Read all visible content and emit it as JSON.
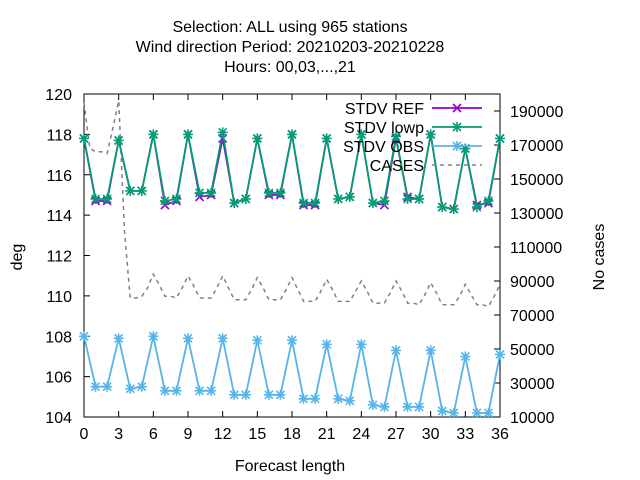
{
  "chart_data": {
    "type": "line",
    "title": [
      "Selection: ALL using   965 stations",
      "Wind direction   Period: 20210203-20210228",
      "Hours:  00,03,...,21"
    ],
    "xlabel": "Forecast length",
    "ylabel": "deg",
    "y2label": "No cases",
    "xlim": [
      0,
      36
    ],
    "ylim": [
      104,
      120
    ],
    "y2lim": [
      10000,
      200000
    ],
    "xticks": [
      0,
      3,
      6,
      9,
      12,
      15,
      18,
      21,
      24,
      27,
      30,
      33,
      36
    ],
    "yticks": [
      104,
      106,
      108,
      110,
      112,
      114,
      116,
      118,
      120
    ],
    "y2ticks": [
      10000,
      30000,
      50000,
      70000,
      90000,
      110000,
      130000,
      150000,
      170000,
      190000
    ],
    "grid": false,
    "legend_position": "top-right",
    "series": [
      {
        "name": "STDV REF",
        "axis": "y",
        "color": "#9400d3",
        "marker": "cross",
        "x": [
          0,
          1,
          2,
          3,
          4,
          5,
          6,
          7,
          8,
          9,
          10,
          11,
          12,
          13,
          14,
          15,
          16,
          17,
          18,
          19,
          20,
          21,
          22,
          23,
          24,
          25,
          26,
          27,
          28,
          29,
          30,
          31,
          32,
          33,
          34,
          35,
          36
        ],
        "values": [
          117.8,
          114.7,
          114.7,
          117.7,
          115.2,
          115.2,
          118.0,
          114.5,
          114.7,
          118.0,
          114.9,
          115.0,
          117.8,
          114.6,
          114.8,
          117.8,
          115.0,
          115.0,
          118.0,
          114.5,
          114.5,
          117.8,
          114.8,
          114.9,
          118.0,
          114.6,
          114.5,
          117.8,
          114.9,
          114.8,
          118.0,
          114.4,
          114.3,
          117.3,
          114.5,
          114.6,
          117.8
        ]
      },
      {
        "name": "STDV lowp",
        "axis": "y",
        "color": "#009e73",
        "marker": "star",
        "x": [
          0,
          1,
          2,
          3,
          4,
          5,
          6,
          7,
          8,
          9,
          10,
          11,
          12,
          13,
          14,
          15,
          16,
          17,
          18,
          19,
          20,
          21,
          22,
          23,
          24,
          25,
          26,
          27,
          28,
          29,
          30,
          31,
          32,
          33,
          34,
          35,
          36
        ],
        "values": [
          117.8,
          114.8,
          114.8,
          117.7,
          115.2,
          115.2,
          118.0,
          114.7,
          114.8,
          118.0,
          115.1,
          115.1,
          118.1,
          114.6,
          114.8,
          117.8,
          115.1,
          115.1,
          118.0,
          114.6,
          114.6,
          117.8,
          114.8,
          114.9,
          118.0,
          114.6,
          114.7,
          117.9,
          114.8,
          114.8,
          118.0,
          114.4,
          114.3,
          117.3,
          114.4,
          114.7,
          117.8
        ]
      },
      {
        "name": "STDV OBS",
        "axis": "y",
        "color": "#56b4e9",
        "marker": "star",
        "x": [
          0,
          1,
          2,
          3,
          4,
          5,
          6,
          7,
          8,
          9,
          10,
          11,
          12,
          13,
          14,
          15,
          16,
          17,
          18,
          19,
          20,
          21,
          22,
          23,
          24,
          25,
          26,
          27,
          28,
          29,
          30,
          31,
          32,
          33,
          34,
          35,
          36
        ],
        "values": [
          108.0,
          105.5,
          105.5,
          107.9,
          105.4,
          105.5,
          108.0,
          105.3,
          105.3,
          107.9,
          105.3,
          105.3,
          107.9,
          105.1,
          105.1,
          107.8,
          105.1,
          105.1,
          107.8,
          104.9,
          104.9,
          107.6,
          104.9,
          104.8,
          107.6,
          104.6,
          104.5,
          107.3,
          104.5,
          104.5,
          107.3,
          104.3,
          104.2,
          107.0,
          104.2,
          104.2,
          107.1
        ]
      },
      {
        "name": "CASES",
        "axis": "y2",
        "color": "#808080",
        "dashed": true,
        "x": [
          0,
          0.5,
          1,
          1.5,
          2,
          2.5,
          3,
          3.5,
          4,
          4.5,
          5,
          5.5,
          6,
          6.5,
          7,
          7.5,
          8,
          8.5,
          9,
          9.5,
          10,
          10.5,
          11,
          11.5,
          12,
          12.5,
          13,
          13.5,
          14,
          14.5,
          15,
          15.5,
          16,
          16.5,
          17,
          17.5,
          18,
          18.5,
          19,
          19.5,
          20,
          20.5,
          21,
          21.5,
          22,
          22.5,
          23,
          23.5,
          24,
          24.5,
          25,
          25.5,
          26,
          26.5,
          27,
          27.5,
          28,
          28.5,
          29,
          29.5,
          30,
          30.5,
          31,
          31.5,
          32,
          32.5,
          33,
          33.5,
          34,
          34.5,
          35,
          35.5,
          36
        ],
        "values": [
          195000,
          168000,
          166000,
          166000,
          165000,
          180000,
          196000,
          120000,
          80000,
          80000,
          81000,
          86000,
          94000,
          88000,
          81000,
          81000,
          80000,
          86000,
          93000,
          87000,
          80000,
          80000,
          80000,
          86000,
          93000,
          86000,
          79000,
          79000,
          79000,
          85000,
          92000,
          86000,
          79000,
          79000,
          79000,
          85000,
          92000,
          85000,
          78000,
          78000,
          78000,
          84000,
          91000,
          85000,
          78000,
          78000,
          78000,
          84000,
          90000,
          84000,
          77000,
          77000,
          77000,
          83000,
          90000,
          84000,
          77000,
          77000,
          76000,
          82000,
          89000,
          83000,
          76000,
          76000,
          76000,
          81000,
          88000,
          82000,
          76000,
          76000,
          75000,
          81000,
          88000
        ]
      }
    ]
  }
}
